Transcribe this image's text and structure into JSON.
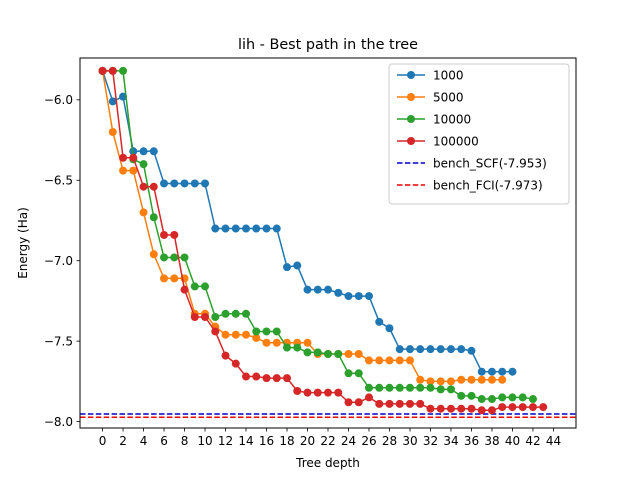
{
  "chart_data": {
    "type": "line",
    "title": "lih - Best path in the tree",
    "xlabel": "Tree depth",
    "ylabel": "Energy (Ha)",
    "xlim": [
      -2.2,
      46.2
    ],
    "ylim": [
      -8.04,
      -5.74
    ],
    "xticks": [
      0,
      2,
      4,
      6,
      8,
      10,
      12,
      14,
      16,
      18,
      20,
      22,
      24,
      26,
      28,
      30,
      32,
      34,
      36,
      38,
      40,
      42,
      44
    ],
    "yticks": [
      -6.0,
      -6.5,
      -7.0,
      -7.5,
      -8.0
    ],
    "ytick_labels": [
      "−6.0",
      "−6.5",
      "−7.0",
      "−7.5",
      "−8.0"
    ],
    "legend_position": "top-right",
    "series": [
      {
        "name": "1000",
        "color": "#1f77b4",
        "x": [
          0,
          1,
          2,
          3,
          4,
          5,
          6,
          7,
          8,
          9,
          10,
          11,
          12,
          13,
          14,
          15,
          16,
          17,
          18,
          19,
          20,
          21,
          22,
          23,
          24,
          25,
          26,
          27,
          28,
          29,
          30,
          31,
          32,
          33,
          34,
          35,
          36,
          37,
          38,
          39,
          40
        ],
        "y": [
          -5.82,
          -6.01,
          -5.98,
          -6.32,
          -6.32,
          -6.32,
          -6.52,
          -6.52,
          -6.52,
          -6.52,
          -6.52,
          -6.8,
          -6.8,
          -6.8,
          -6.8,
          -6.8,
          -6.8,
          -6.8,
          -7.04,
          -7.03,
          -7.18,
          -7.18,
          -7.18,
          -7.2,
          -7.22,
          -7.22,
          -7.22,
          -7.38,
          -7.42,
          -7.55,
          -7.55,
          -7.55,
          -7.55,
          -7.55,
          -7.55,
          -7.55,
          -7.56,
          -7.69,
          -7.69,
          -7.69,
          -7.69
        ]
      },
      {
        "name": "5000",
        "color": "#ff7f0e",
        "x": [
          0,
          1,
          2,
          3,
          4,
          5,
          6,
          7,
          8,
          9,
          10,
          11,
          12,
          13,
          14,
          15,
          16,
          17,
          18,
          19,
          20,
          21,
          22,
          23,
          24,
          25,
          26,
          27,
          28,
          29,
          30,
          31,
          32,
          33,
          34,
          35,
          36,
          37,
          38,
          39
        ],
        "y": [
          -5.82,
          -6.2,
          -6.44,
          -6.44,
          -6.7,
          -6.96,
          -7.11,
          -7.11,
          -7.11,
          -7.33,
          -7.33,
          -7.41,
          -7.46,
          -7.46,
          -7.46,
          -7.48,
          -7.51,
          -7.51,
          -7.51,
          -7.51,
          -7.51,
          -7.58,
          -7.58,
          -7.58,
          -7.58,
          -7.58,
          -7.62,
          -7.62,
          -7.62,
          -7.62,
          -7.62,
          -7.74,
          -7.75,
          -7.75,
          -7.75,
          -7.74,
          -7.74,
          -7.74,
          -7.74,
          -7.74
        ]
      },
      {
        "name": "10000",
        "color": "#2ca02c",
        "x": [
          0,
          1,
          2,
          3,
          4,
          5,
          6,
          7,
          8,
          9,
          10,
          11,
          12,
          13,
          14,
          15,
          16,
          17,
          18,
          19,
          20,
          21,
          22,
          23,
          24,
          25,
          26,
          27,
          28,
          29,
          30,
          31,
          32,
          33,
          34,
          35,
          36,
          37,
          38,
          39,
          40,
          41,
          42
        ],
        "y": [
          -5.82,
          -5.82,
          -5.82,
          -6.37,
          -6.4,
          -6.73,
          -6.98,
          -6.98,
          -6.98,
          -7.16,
          -7.16,
          -7.35,
          -7.33,
          -7.33,
          -7.33,
          -7.44,
          -7.44,
          -7.44,
          -7.54,
          -7.54,
          -7.57,
          -7.57,
          -7.58,
          -7.58,
          -7.7,
          -7.7,
          -7.79,
          -7.79,
          -7.79,
          -7.79,
          -7.79,
          -7.79,
          -7.79,
          -7.8,
          -7.8,
          -7.84,
          -7.84,
          -7.86,
          -7.86,
          -7.85,
          -7.85,
          -7.85,
          -7.86
        ]
      },
      {
        "name": "100000",
        "color": "#d62728",
        "x": [
          0,
          1,
          2,
          3,
          4,
          5,
          6,
          7,
          8,
          9,
          10,
          11,
          12,
          13,
          14,
          15,
          16,
          17,
          18,
          19,
          20,
          21,
          22,
          23,
          24,
          25,
          26,
          27,
          28,
          29,
          30,
          31,
          32,
          33,
          34,
          35,
          36,
          37,
          38,
          39,
          40,
          41,
          42,
          43
        ],
        "y": [
          -5.82,
          -5.82,
          -6.36,
          -6.36,
          -6.54,
          -6.54,
          -6.84,
          -6.84,
          -7.18,
          -7.35,
          -7.35,
          -7.44,
          -7.59,
          -7.64,
          -7.72,
          -7.72,
          -7.73,
          -7.73,
          -7.73,
          -7.81,
          -7.82,
          -7.82,
          -7.82,
          -7.82,
          -7.88,
          -7.88,
          -7.85,
          -7.89,
          -7.89,
          -7.89,
          -7.89,
          -7.89,
          -7.92,
          -7.92,
          -7.92,
          -7.92,
          -7.92,
          -7.93,
          -7.93,
          -7.91,
          -7.91,
          -7.91,
          -7.91,
          -7.91
        ]
      }
    ],
    "reference_lines": [
      {
        "name": "bench_SCF(-7.953)",
        "value": -7.953,
        "color": "#0000cc",
        "style": "dashed"
      },
      {
        "name": "bench_FCI(-7.973)",
        "value": -7.973,
        "color": "#ee0000",
        "style": "dashed"
      }
    ]
  }
}
